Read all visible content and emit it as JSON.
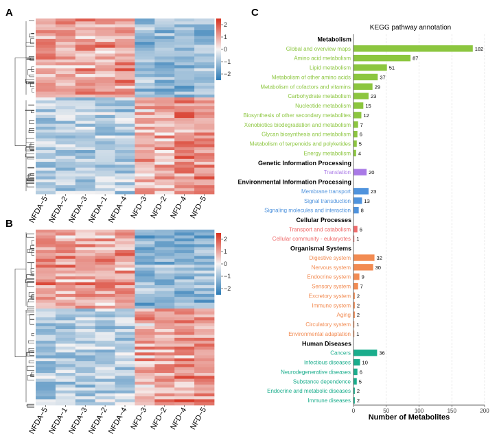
{
  "panels": {
    "a": {
      "letter": "A"
    },
    "b": {
      "letter": "B"
    },
    "c": {
      "letter": "C"
    }
  },
  "colors": {
    "high": "#d7301f",
    "mid": "#f7f4f4",
    "low": "#2c7bb6",
    "metabolism": "#8cc63f",
    "genetic": "#a979e6",
    "environmental": "#4f93dd",
    "cellular": "#ef6b6b",
    "organismal": "#f28b52",
    "disease": "#1aad8c"
  },
  "chart_data": [
    {
      "type": "heatmap",
      "panel": "A",
      "columns": [
        "NFDA−5",
        "NFDA−2",
        "NFDA−3",
        "NFDA−1",
        "NFDA−4",
        "NFD−3",
        "NFD−2",
        "NFD−4",
        "NFD−5"
      ],
      "colorbar_ticks": [
        "2",
        "1",
        "0",
        "−1",
        "−2"
      ],
      "scale_range": [
        -2.5,
        2.5
      ]
    },
    {
      "type": "heatmap",
      "panel": "B",
      "columns": [
        "NFDA−5",
        "NFDA−1",
        "NFDA−3",
        "NFDA−2",
        "NFDA−4",
        "NFD−3",
        "NFD−2",
        "NFD−4",
        "NFD−5"
      ],
      "colorbar_ticks": [
        "2",
        "1",
        "0",
        "−1",
        "−2"
      ],
      "scale_range": [
        -2.5,
        2.5
      ]
    },
    {
      "type": "bar",
      "panel": "C",
      "orientation": "horizontal",
      "title": "KEGG pathway annotation",
      "xlabel": "Number of Metabolites",
      "xlim": [
        0,
        200
      ],
      "xticks": [
        0,
        50,
        100,
        150,
        200
      ],
      "grid": true,
      "groups": [
        {
          "name": "Metabolism",
          "color_key": "metabolism",
          "items": [
            {
              "label": "Global and overview maps",
              "value": 182
            },
            {
              "label": "Amino acid metabolism",
              "value": 87
            },
            {
              "label": "Lipid metabolism",
              "value": 51
            },
            {
              "label": "Metabolism of other amino acids",
              "value": 37
            },
            {
              "label": "Metabolism of cofactors and vitamins",
              "value": 29
            },
            {
              "label": "Carbohydrate metabolism",
              "value": 23
            },
            {
              "label": "Nucleotide metabolism",
              "value": 15
            },
            {
              "label": "Biosynthesis of other secondary metabolites",
              "value": 12
            },
            {
              "label": "Xenobiotics biodegradation and metabolism",
              "value": 7
            },
            {
              "label": "Glycan biosynthesis and metabolism",
              "value": 6
            },
            {
              "label": "Metabolism of terpenoids and polyketides",
              "value": 5
            },
            {
              "label": "Energy metabolism",
              "value": 4
            }
          ]
        },
        {
          "name": "Genetic Information Processing",
          "color_key": "genetic",
          "items": [
            {
              "label": "Translation",
              "value": 20
            }
          ]
        },
        {
          "name": "Environmental Information Processing",
          "color_key": "environmental",
          "items": [
            {
              "label": "Membrane transport",
              "value": 23
            },
            {
              "label": "Signal transduction",
              "value": 13
            },
            {
              "label": "Signaling molecules and interaction",
              "value": 8
            }
          ]
        },
        {
          "name": "Cellular Processes",
          "color_key": "cellular",
          "items": [
            {
              "label": "Transport and catabolism",
              "value": 6
            },
            {
              "label": "Cellular community - eukaryotes",
              "value": 1
            }
          ]
        },
        {
          "name": "Organismal Systems",
          "color_key": "organismal",
          "items": [
            {
              "label": "Digestive system",
              "value": 32
            },
            {
              "label": "Nervous system",
              "value": 30
            },
            {
              "label": "Endocrine system",
              "value": 9
            },
            {
              "label": "Sensory system",
              "value": 7
            },
            {
              "label": "Excretory system",
              "value": 2
            },
            {
              "label": "Immune system",
              "value": 2
            },
            {
              "label": "Aging",
              "value": 2
            },
            {
              "label": "Circulatory system",
              "value": 1
            },
            {
              "label": "Environmental adaptation",
              "value": 1
            }
          ]
        },
        {
          "name": "Human Diseases",
          "color_key": "disease",
          "items": [
            {
              "label": "Cancers",
              "value": 36
            },
            {
              "label": "Infectious diseases",
              "value": 10
            },
            {
              "label": "Neurodegenerative diseases",
              "value": 6
            },
            {
              "label": "Substance dependence",
              "value": 5
            },
            {
              "label": "Endocrine and metabolic diseases",
              "value": 2
            },
            {
              "label": "Immune diseases",
              "value": 2
            }
          ]
        }
      ]
    }
  ]
}
